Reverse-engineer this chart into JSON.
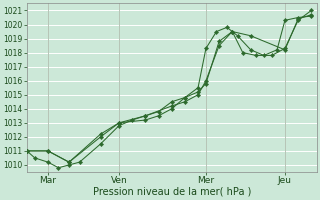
{
  "xlabel": "Pression niveau de la mer( hPa )",
  "bg_color": "#cce8d8",
  "grid_color": "#ffffff",
  "line_color": "#2d6a2d",
  "marker_color": "#2d6a2d",
  "ylim": [
    1009.5,
    1021.5
  ],
  "yticks": [
    1010,
    1011,
    1012,
    1013,
    1014,
    1015,
    1016,
    1017,
    1018,
    1019,
    1020,
    1021
  ],
  "xlim": [
    0,
    11.0
  ],
  "day_labels": [
    "Mar",
    "Ven",
    "Mer",
    "Jeu"
  ],
  "day_positions": [
    0.8,
    3.5,
    6.8,
    9.8
  ],
  "series1_x": [
    0.0,
    0.3,
    0.8,
    1.2,
    1.6,
    2.0,
    2.8,
    3.5,
    4.0,
    4.5,
    5.0,
    5.5,
    6.0,
    6.5,
    6.8,
    7.2,
    7.6,
    8.0,
    8.5,
    9.0,
    9.5,
    9.8,
    10.3,
    10.8
  ],
  "series1_y": [
    1011.0,
    1010.5,
    1010.2,
    1009.8,
    1010.0,
    1010.2,
    1011.5,
    1012.8,
    1013.2,
    1013.5,
    1013.8,
    1014.5,
    1014.8,
    1015.5,
    1018.3,
    1019.5,
    1019.8,
    1019.2,
    1018.2,
    1017.8,
    1018.2,
    1020.3,
    1020.5,
    1020.6
  ],
  "series2_x": [
    0.0,
    0.8,
    1.6,
    2.8,
    3.5,
    4.5,
    5.5,
    6.0,
    6.5,
    6.8,
    7.3,
    7.8,
    8.5,
    9.8,
    10.3,
    10.8
  ],
  "series2_y": [
    1011.0,
    1011.0,
    1010.2,
    1012.0,
    1013.0,
    1013.5,
    1014.2,
    1014.5,
    1015.0,
    1016.0,
    1018.5,
    1019.5,
    1019.2,
    1018.2,
    1020.4,
    1020.7
  ],
  "series3_x": [
    0.0,
    0.8,
    1.6,
    2.8,
    3.5,
    4.5,
    5.0,
    5.5,
    6.0,
    6.5,
    6.8,
    7.3,
    7.8,
    8.2,
    8.7,
    9.3,
    9.8,
    10.3,
    10.8
  ],
  "series3_y": [
    1011.0,
    1011.0,
    1010.2,
    1012.2,
    1013.0,
    1013.2,
    1013.5,
    1014.0,
    1014.8,
    1015.2,
    1015.8,
    1018.8,
    1019.5,
    1018.0,
    1017.8,
    1017.8,
    1018.3,
    1020.3,
    1021.0
  ],
  "xlabel_fontsize": 7,
  "ytick_fontsize": 5.5,
  "xtick_fontsize": 6.5
}
